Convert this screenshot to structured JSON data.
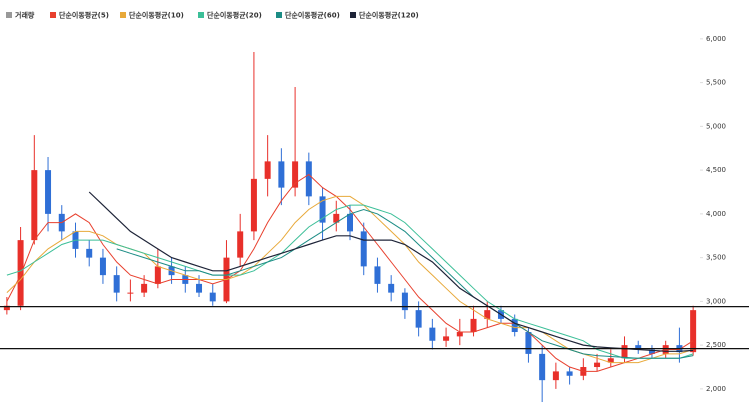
{
  "chart_data": {
    "type": "candlestick",
    "categories": [
      null,
      null,
      null,
      null,
      null,
      null,
      null,
      null,
      null,
      null,
      null,
      null,
      null,
      null,
      null,
      null,
      null,
      null,
      null,
      null,
      null,
      null,
      null,
      null,
      null,
      null,
      null,
      null,
      null,
      null,
      null,
      null,
      null,
      null,
      null,
      null,
      null,
      null,
      null,
      null,
      null,
      null,
      null,
      null,
      null,
      null,
      null,
      null,
      null,
      null,
      null
    ],
    "open": [
      2900,
      2950,
      3700,
      4500,
      4000,
      3800,
      3600,
      3500,
      3300,
      3100,
      3100,
      3200,
      3400,
      3300,
      3200,
      3100,
      3000,
      3500,
      3800,
      4400,
      4600,
      4300,
      4600,
      4200,
      3900,
      4000,
      3800,
      3400,
      3200,
      3100,
      2900,
      2700,
      2550,
      2600,
      2650,
      2800,
      2900,
      2800,
      2650,
      2400,
      2100,
      2200,
      2150,
      2250,
      2300,
      2350,
      2500,
      2450,
      2400,
      2500,
      2420
    ],
    "high": [
      3050,
      3850,
      4900,
      4650,
      4100,
      3900,
      3700,
      3600,
      3400,
      3250,
      3300,
      3600,
      3500,
      3400,
      3300,
      3200,
      3700,
      4000,
      5850,
      4900,
      4750,
      5450,
      4700,
      4300,
      4150,
      4100,
      3900,
      3500,
      3300,
      3150,
      3000,
      2800,
      2700,
      2800,
      2950,
      3000,
      2950,
      2850,
      2700,
      2500,
      2300,
      2250,
      2350,
      2400,
      2450,
      2600,
      2550,
      2500,
      2550,
      2700,
      2950
    ],
    "low": [
      2850,
      2900,
      3650,
      3800,
      3700,
      3500,
      3400,
      3200,
      3000,
      3000,
      3050,
      3150,
      3200,
      3100,
      3050,
      2950,
      2980,
      3400,
      3700,
      4200,
      4100,
      4200,
      4100,
      3700,
      3800,
      3700,
      3300,
      3100,
      3000,
      2800,
      2600,
      2450,
      2480,
      2500,
      2600,
      2700,
      2750,
      2600,
      2300,
      1850,
      2000,
      2050,
      2100,
      2200,
      2250,
      2300,
      2400,
      2350,
      2350,
      2300,
      2380
    ],
    "close": [
      2950,
      3700,
      4500,
      4000,
      3800,
      3600,
      3500,
      3300,
      3100,
      3100,
      3200,
      3400,
      3300,
      3200,
      3100,
      3000,
      3500,
      3800,
      4400,
      4600,
      4300,
      4600,
      4200,
      3900,
      4000,
      3800,
      3400,
      3200,
      3100,
      2900,
      2700,
      2550,
      2600,
      2650,
      2800,
      2900,
      2800,
      2650,
      2400,
      2100,
      2200,
      2150,
      2250,
      2300,
      2350,
      2500,
      2450,
      2400,
      2500,
      2420,
      2900
    ],
    "up_color": "#e8302a",
    "down_color": "#2f6fd6",
    "series": [
      {
        "name": "거래량",
        "color": "#999999"
      },
      {
        "name": "단순이동평균(5)",
        "color": "#e8402e",
        "values": [
          3000,
          3300,
          3700,
          3900,
          3900,
          4000,
          3900,
          3650,
          3450,
          3300,
          3250,
          3200,
          3250,
          3250,
          3250,
          3200,
          3250,
          3350,
          3600,
          3900,
          4150,
          4350,
          4450,
          4300,
          4200,
          4050,
          3850,
          3650,
          3450,
          3250,
          3050,
          2900,
          2750,
          2650,
          2650,
          2700,
          2750,
          2750,
          2650,
          2500,
          2350,
          2250,
          2200,
          2200,
          2250,
          2300,
          2350,
          2400,
          2450,
          2450,
          2550
        ]
      },
      {
        "name": "단순이동평균(10)",
        "color": "#e8a93a",
        "values": [
          3100,
          3250,
          3450,
          3600,
          3700,
          3800,
          3800,
          3750,
          3650,
          3600,
          3550,
          3400,
          3350,
          3300,
          3250,
          3250,
          3250,
          3300,
          3400,
          3550,
          3700,
          3900,
          4050,
          4150,
          4200,
          4200,
          4100,
          3950,
          3800,
          3650,
          3450,
          3300,
          3150,
          3000,
          2900,
          2800,
          2750,
          2700,
          2700,
          2650,
          2550,
          2450,
          2400,
          2350,
          2300,
          2300,
          2300,
          2350,
          2400,
          2400,
          2450
        ]
      },
      {
        "name": "단순이동평균(20)",
        "color": "#3cbf98",
        "values": [
          3300,
          3350,
          3450,
          3550,
          3650,
          3700,
          3700,
          3700,
          3650,
          3600,
          3550,
          3500,
          3450,
          3400,
          3350,
          3300,
          3300,
          3300,
          3350,
          3450,
          3550,
          3700,
          3850,
          3950,
          4050,
          4100,
          4100,
          4050,
          4000,
          3900,
          3750,
          3600,
          3450,
          3300,
          3150,
          3000,
          2900,
          2800,
          2750,
          2700,
          2650,
          2600,
          2550,
          2450,
          2400,
          2350,
          2350,
          2350,
          2350,
          2350,
          2400
        ]
      },
      {
        "name": "단순이동평균(60)",
        "color": "#1c8c85",
        "values": [
          null,
          null,
          null,
          null,
          null,
          null,
          null,
          null,
          3600,
          3550,
          3500,
          3450,
          3400,
          3350,
          3350,
          3300,
          3300,
          3350,
          3400,
          3450,
          3500,
          3600,
          3700,
          3800,
          3900,
          4000,
          4050,
          4000,
          3900,
          3800,
          3650,
          3500,
          3350,
          3200,
          3050,
          2950,
          2850,
          2750,
          2650,
          2550,
          2500,
          2450,
          2400,
          2380,
          2370,
          2360,
          2350,
          2350,
          2350,
          2350,
          2380
        ]
      },
      {
        "name": "단순이동평균(120)",
        "color": "#1e2438",
        "values": [
          null,
          null,
          null,
          null,
          null,
          null,
          4250,
          4100,
          3950,
          3800,
          3700,
          3600,
          3500,
          3450,
          3400,
          3350,
          3350,
          3400,
          3450,
          3500,
          3550,
          3600,
          3650,
          3700,
          3750,
          3750,
          3700,
          3700,
          3700,
          3650,
          3550,
          3450,
          3300,
          3150,
          3050,
          2950,
          2850,
          2750,
          2700,
          2650,
          2600,
          2550,
          2500,
          2480,
          2470,
          2460,
          2450,
          2440,
          2430,
          2430,
          2440
        ]
      }
    ],
    "hlines": [
      2940,
      2460
    ],
    "ylim": [
      1656,
      6444
    ],
    "yticks": [
      {
        "value": 2000,
        "label": "2,000"
      },
      {
        "value": 2500,
        "label": "2,500"
      },
      {
        "value": 3000,
        "label": "3,000"
      },
      {
        "value": 3500,
        "label": "3,500"
      },
      {
        "value": 4000,
        "label": "4,000"
      },
      {
        "value": 4500,
        "label": "4,500"
      },
      {
        "value": 5000,
        "label": "5,000"
      },
      {
        "value": 5500,
        "label": "5,500"
      },
      {
        "value": 6000,
        "label": "6,000"
      }
    ]
  }
}
